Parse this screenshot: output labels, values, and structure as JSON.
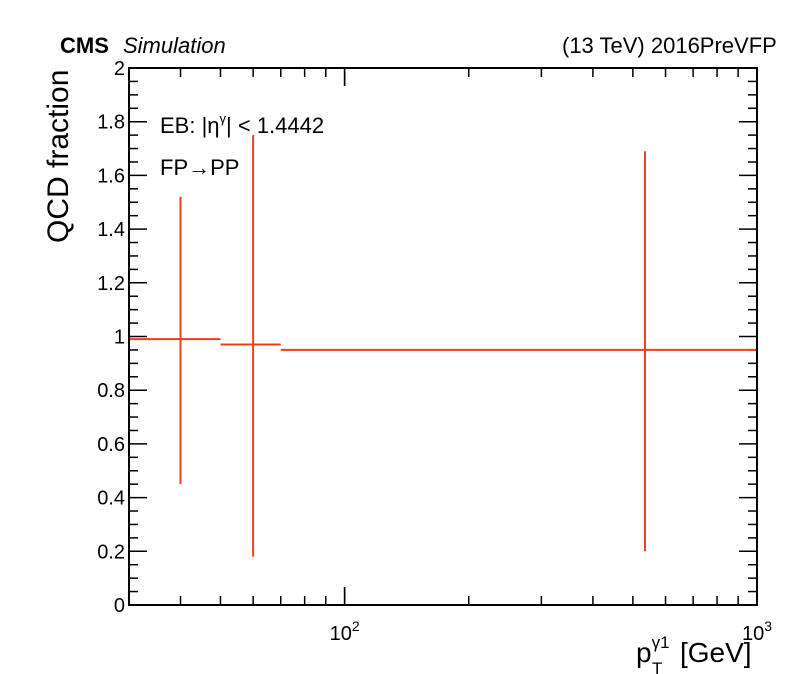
{
  "header": {
    "experiment": "CMS",
    "status": "Simulation",
    "energy": "(13 TeV) 2016PreVFP"
  },
  "annotations": {
    "region_prefix": "EB: |η",
    "region_sup": "γ",
    "region_suffix": "| < 1.4442",
    "transition_from": "FP",
    "transition_arrow": "→",
    "transition_to": "PP"
  },
  "colors": {
    "series": "#e8411b",
    "axis": "#000000"
  },
  "chart_data": {
    "type": "scatter",
    "xscale": "log",
    "xlim": [
      30,
      1000
    ],
    "ylim": [
      0,
      2
    ],
    "ylabel": "QCD fraction",
    "xlabel": {
      "base": "p",
      "sup": "γ1",
      "sub": "T",
      "unit": "[GeV]"
    },
    "xticks_major": [
      {
        "value": 100,
        "base": "10",
        "exp": "2"
      },
      {
        "value": 1000,
        "base": "10",
        "exp": "3"
      }
    ],
    "yticks": [
      {
        "value": 0,
        "label": "0"
      },
      {
        "value": 0.2,
        "label": "0.2"
      },
      {
        "value": 0.4,
        "label": "0.4"
      },
      {
        "value": 0.6,
        "label": "0.6"
      },
      {
        "value": 0.8,
        "label": "0.8"
      },
      {
        "value": 1.0,
        "label": "1"
      },
      {
        "value": 1.2,
        "label": "1.2"
      },
      {
        "value": 1.4,
        "label": "1.4"
      },
      {
        "value": 1.6,
        "label": "1.6"
      },
      {
        "value": 1.8,
        "label": "1.8"
      },
      {
        "value": 2.0,
        "label": "2"
      }
    ],
    "points": [
      {
        "x_low": 30,
        "x_high": 50,
        "x": 40,
        "y": 0.99,
        "y_err_low": 0.54,
        "y_err_high": 0.53
      },
      {
        "x_low": 50,
        "x_high": 70,
        "x": 60,
        "y": 0.97,
        "y_err_low": 0.79,
        "y_err_high": 0.78
      },
      {
        "x_low": 70,
        "x_high": 1000,
        "x": 535,
        "y": 0.95,
        "y_err_low": 0.75,
        "y_err_high": 0.74
      }
    ]
  }
}
